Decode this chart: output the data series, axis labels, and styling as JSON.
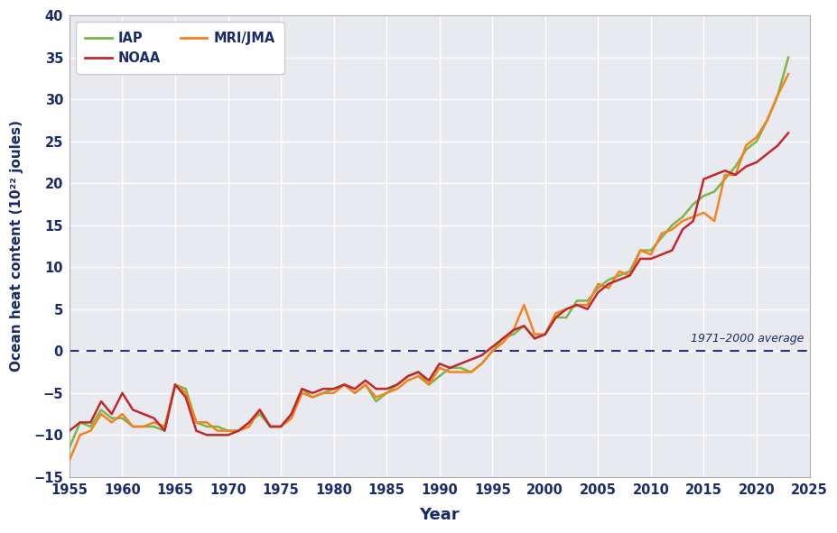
{
  "title": "",
  "xlabel": "Year",
  "ylabel": "Ocean heat content (10²² joules)",
  "xlim": [
    1955,
    2025
  ],
  "ylim": [
    -15,
    40
  ],
  "xticks": [
    1955,
    1960,
    1965,
    1970,
    1975,
    1980,
    1985,
    1990,
    1995,
    2000,
    2005,
    2010,
    2015,
    2020,
    2025
  ],
  "yticks": [
    -15,
    -10,
    -5,
    0,
    5,
    10,
    15,
    20,
    25,
    30,
    35,
    40
  ],
  "plot_background_color": "#e8eaf0",
  "fig_background_color": "#ffffff",
  "grid_color": "#ffffff",
  "axes_label_color": "#1a2b6b",
  "tick_label_color": "#1a2b6b",
  "dashed_line_y": 0,
  "dashed_line_color": "#253575",
  "dashed_line_label": "1971–2000 average",
  "IAP": {
    "color": "#7ab648",
    "label": "IAP",
    "years": [
      1955,
      1956,
      1957,
      1958,
      1959,
      1960,
      1961,
      1962,
      1963,
      1964,
      1965,
      1966,
      1967,
      1968,
      1969,
      1970,
      1971,
      1972,
      1973,
      1974,
      1975,
      1976,
      1977,
      1978,
      1979,
      1980,
      1981,
      1982,
      1983,
      1984,
      1985,
      1986,
      1987,
      1988,
      1989,
      1990,
      1991,
      1992,
      1993,
      1994,
      1995,
      1996,
      1997,
      1998,
      1999,
      2000,
      2001,
      2002,
      2003,
      2004,
      2005,
      2006,
      2007,
      2008,
      2009,
      2010,
      2011,
      2012,
      2013,
      2014,
      2015,
      2016,
      2017,
      2018,
      2019,
      2020,
      2021,
      2022,
      2023
    ],
    "values": [
      -11.5,
      -8.5,
      -9.0,
      -7.0,
      -8.0,
      -8.0,
      -9.0,
      -9.0,
      -9.0,
      -9.5,
      -4.0,
      -4.5,
      -8.5,
      -9.0,
      -9.0,
      -9.5,
      -9.5,
      -8.5,
      -7.5,
      -9.0,
      -9.0,
      -7.5,
      -4.5,
      -5.5,
      -5.0,
      -4.5,
      -4.0,
      -5.0,
      -4.0,
      -6.0,
      -5.0,
      -4.0,
      -3.0,
      -2.5,
      -4.0,
      -3.0,
      -2.0,
      -2.0,
      -2.5,
      -1.5,
      0.0,
      1.5,
      2.0,
      3.0,
      1.5,
      2.0,
      4.0,
      4.0,
      6.0,
      6.0,
      7.5,
      8.5,
      9.0,
      9.5,
      12.0,
      12.0,
      13.5,
      15.0,
      16.0,
      17.5,
      18.5,
      19.0,
      20.5,
      22.0,
      24.0,
      25.0,
      27.5,
      30.5,
      35.0
    ]
  },
  "MRI_JMA": {
    "color": "#f5821f",
    "label": "MRI/JMA",
    "years": [
      1955,
      1956,
      1957,
      1958,
      1959,
      1960,
      1961,
      1962,
      1963,
      1964,
      1965,
      1966,
      1967,
      1968,
      1969,
      1970,
      1971,
      1972,
      1973,
      1974,
      1975,
      1976,
      1977,
      1978,
      1979,
      1980,
      1981,
      1982,
      1983,
      1984,
      1985,
      1986,
      1987,
      1988,
      1989,
      1990,
      1991,
      1992,
      1993,
      1994,
      1995,
      1996,
      1997,
      1998,
      1999,
      2000,
      2001,
      2002,
      2003,
      2004,
      2005,
      2006,
      2007,
      2008,
      2009,
      2010,
      2011,
      2012,
      2013,
      2014,
      2015,
      2016,
      2017,
      2018,
      2019,
      2020,
      2021,
      2022,
      2023
    ],
    "values": [
      -13.0,
      -10.0,
      -9.5,
      -7.5,
      -8.5,
      -7.5,
      -9.0,
      -9.0,
      -8.5,
      -9.0,
      -4.0,
      -5.0,
      -8.5,
      -8.5,
      -9.5,
      -9.5,
      -9.5,
      -9.0,
      -7.0,
      -9.0,
      -9.0,
      -8.0,
      -5.0,
      -5.5,
      -5.0,
      -5.0,
      -4.0,
      -5.0,
      -4.0,
      -5.5,
      -5.0,
      -4.5,
      -3.5,
      -3.0,
      -4.0,
      -2.0,
      -2.5,
      -2.5,
      -2.5,
      -1.5,
      0.0,
      1.0,
      2.5,
      5.5,
      2.0,
      2.0,
      4.5,
      5.0,
      5.5,
      5.5,
      8.0,
      7.5,
      9.5,
      9.0,
      12.0,
      11.5,
      14.0,
      14.5,
      15.5,
      16.0,
      16.5,
      15.5,
      21.0,
      21.0,
      24.5,
      25.5,
      27.5,
      30.5,
      33.0
    ]
  },
  "NOAA": {
    "color": "#c1272d",
    "label": "NOAA",
    "years": [
      1955,
      1956,
      1957,
      1958,
      1959,
      1960,
      1961,
      1962,
      1963,
      1964,
      1965,
      1966,
      1967,
      1968,
      1969,
      1970,
      1971,
      1972,
      1973,
      1974,
      1975,
      1976,
      1977,
      1978,
      1979,
      1980,
      1981,
      1982,
      1983,
      1984,
      1985,
      1986,
      1987,
      1988,
      1989,
      1990,
      1991,
      1992,
      1993,
      1994,
      1995,
      1996,
      1997,
      1998,
      1999,
      2000,
      2001,
      2002,
      2003,
      2004,
      2005,
      2006,
      2007,
      2008,
      2009,
      2010,
      2011,
      2012,
      2013,
      2014,
      2015,
      2016,
      2017,
      2018,
      2019,
      2020,
      2021,
      2022,
      2023
    ],
    "values": [
      -9.5,
      -8.5,
      -8.5,
      -6.0,
      -7.5,
      -5.0,
      -7.0,
      -7.5,
      -8.0,
      -9.5,
      -4.0,
      -5.5,
      -9.5,
      -10.0,
      -10.0,
      -10.0,
      -9.5,
      -8.5,
      -7.0,
      -9.0,
      -9.0,
      -7.5,
      -4.5,
      -5.0,
      -4.5,
      -4.5,
      -4.0,
      -4.5,
      -3.5,
      -4.5,
      -4.5,
      -4.0,
      -3.0,
      -2.5,
      -3.5,
      -1.5,
      -2.0,
      -1.5,
      -1.0,
      -0.5,
      0.5,
      1.5,
      2.5,
      3.0,
      1.5,
      2.0,
      4.0,
      5.0,
      5.5,
      5.0,
      7.0,
      8.0,
      8.5,
      9.0,
      11.0,
      11.0,
      11.5,
      12.0,
      14.5,
      15.5,
      20.5,
      21.0,
      21.5,
      21.0,
      22.0,
      22.5,
      23.5,
      24.5,
      26.0
    ]
  }
}
